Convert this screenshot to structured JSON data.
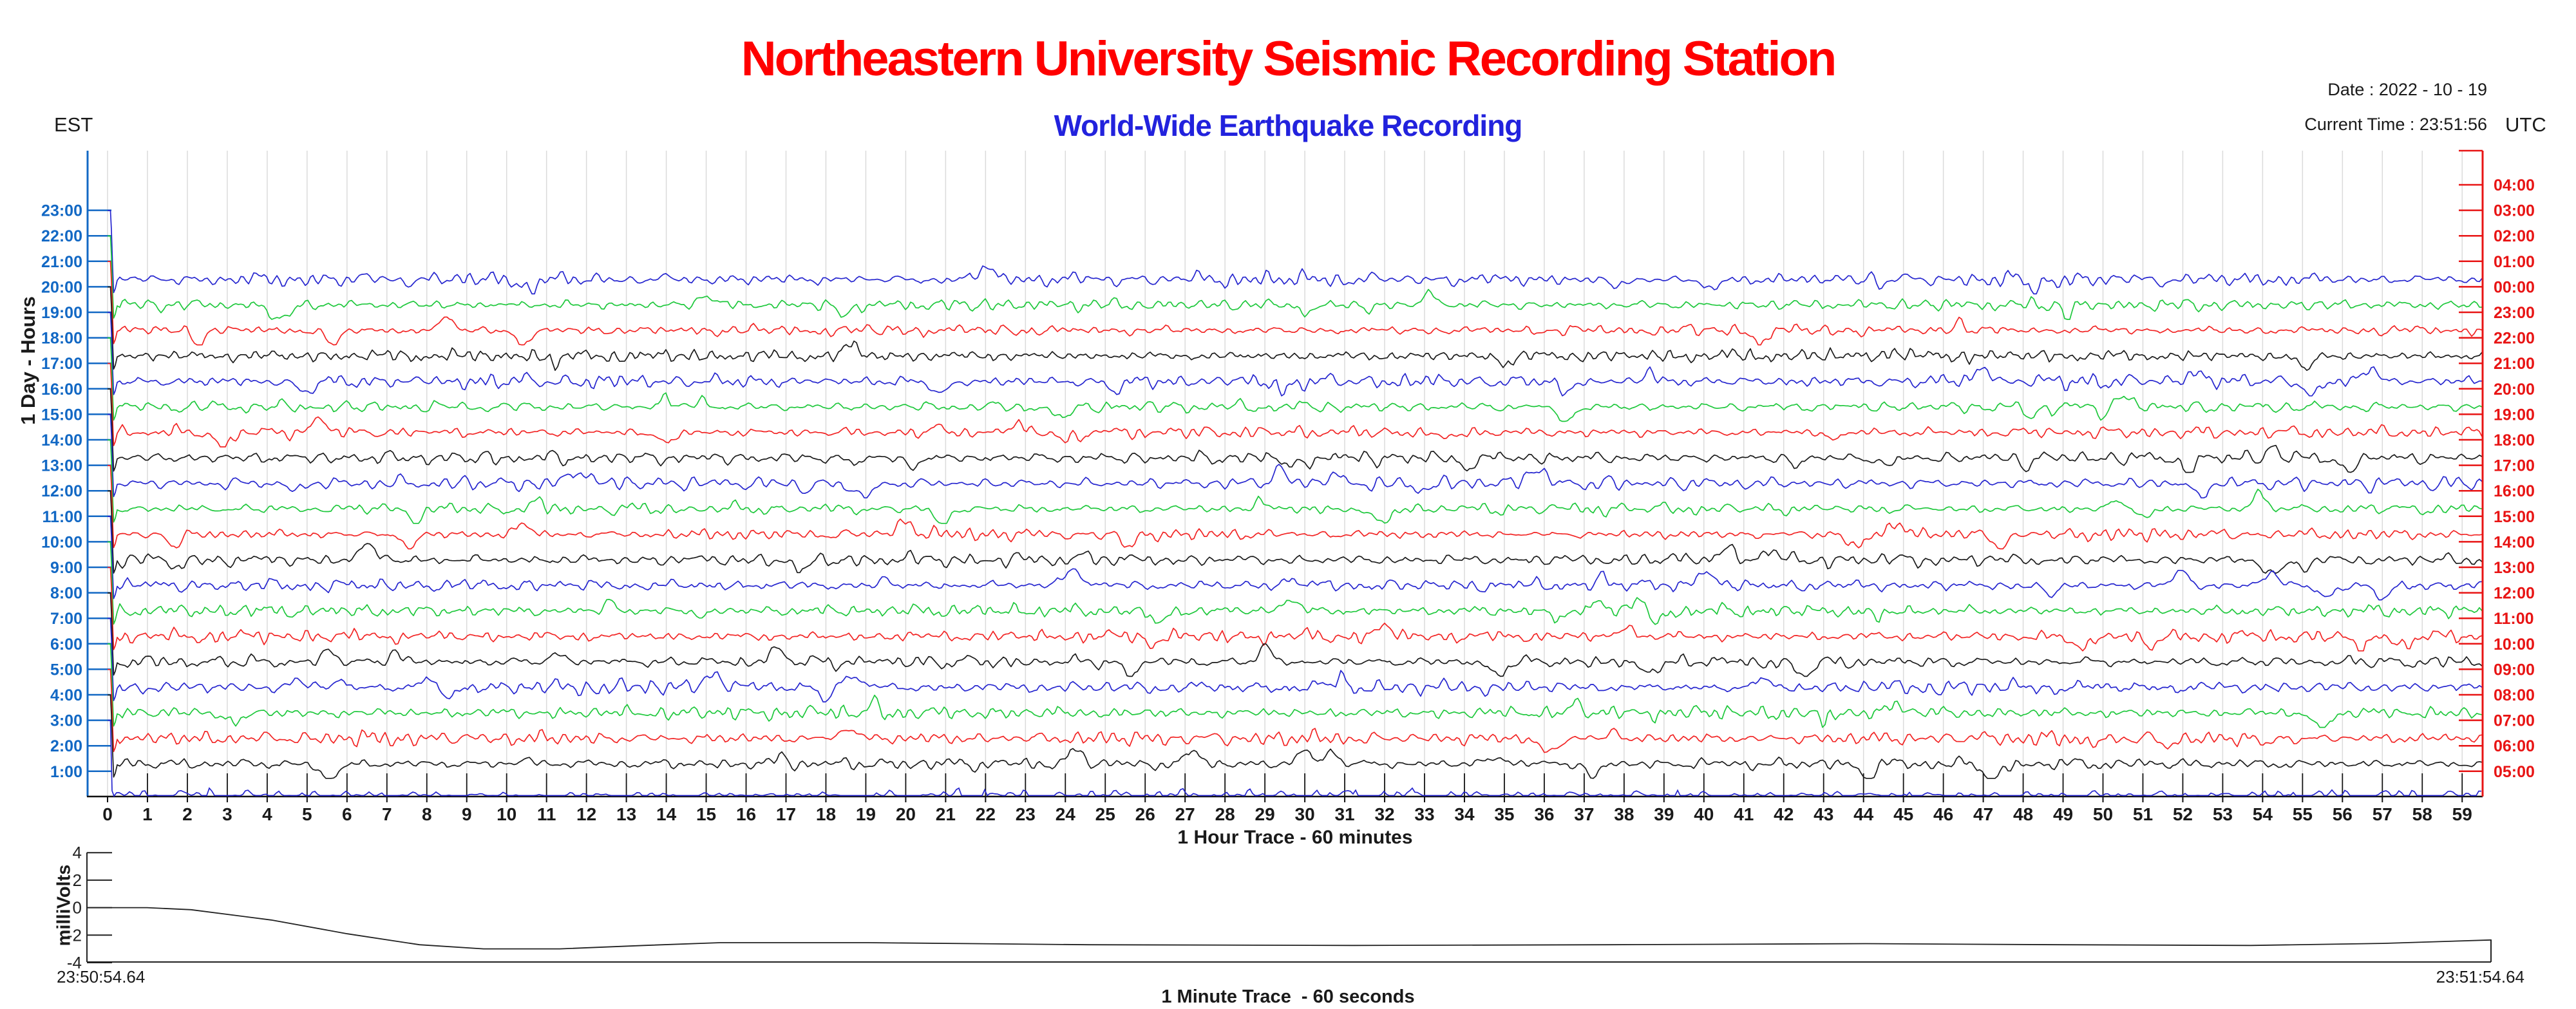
{
  "header": {
    "title": "Northeastern University Seismic Recording Station",
    "subtitle": "World-Wide Earthquake Recording",
    "date_line": "Date : 2022 - 10 - 19",
    "time_line": "Current Time : 23:51:56",
    "left_timezone": "EST",
    "right_timezone": "UTC",
    "title_color": "#ff0000",
    "subtitle_color": "#2222dd"
  },
  "helicorder": {
    "ylabel": "1 Day - Hours",
    "xlabel": "1 Hour Trace - 60 minutes",
    "left_axis_color": "#1268c4",
    "right_axis_color": "#e81414",
    "gridline_color": "#dbdbdb",
    "trace_color_cycle": [
      "#2626cf",
      "#1ec83c",
      "#f22424",
      "#1b1b1b"
    ],
    "est_labels": [
      "23:00",
      "22:00",
      "21:00",
      "20:00",
      "19:00",
      "18:00",
      "17:00",
      "16:00",
      "15:00",
      "14:00",
      "13:00",
      "12:00",
      "11:00",
      "10:00",
      "9:00",
      "8:00",
      "7:00",
      "6:00",
      "5:00",
      "4:00",
      "3:00",
      "2:00",
      "1:00"
    ],
    "utc_labels": [
      "04:00",
      "03:00",
      "02:00",
      "01:00",
      "00:00",
      "23:00",
      "22:00",
      "21:00",
      "20:00",
      "19:00",
      "18:00",
      "17:00",
      "16:00",
      "15:00",
      "14:00",
      "13:00",
      "12:00",
      "11:00",
      "10:00",
      "09:00",
      "08:00",
      "07:00",
      "06:00",
      "05:00"
    ],
    "x_ticks": [
      "0",
      "1",
      "2",
      "3",
      "4",
      "5",
      "6",
      "7",
      "8",
      "9",
      "10",
      "11",
      "12",
      "13",
      "14",
      "15",
      "16",
      "17",
      "18",
      "19",
      "20",
      "21",
      "22",
      "23",
      "24",
      "25",
      "26",
      "27",
      "28",
      "29",
      "30",
      "31",
      "32",
      "33",
      "34",
      "35",
      "36",
      "37",
      "38",
      "39",
      "40",
      "41",
      "42",
      "43",
      "44",
      "45",
      "46",
      "47",
      "48",
      "49",
      "50",
      "51",
      "52",
      "53",
      "54",
      "55",
      "56",
      "57",
      "58",
      "59"
    ]
  },
  "minute_trace": {
    "ylabel": "milliVolts",
    "caption": "1 Minute Trace  - 60 seconds",
    "start_time": "23:50:54.64",
    "end_time": "23:51:54.64",
    "y_ticks": [
      "4",
      "2",
      "0",
      "-2",
      "-4"
    ]
  },
  "chart_data": [
    {
      "id": "hour-helicorder",
      "type": "line",
      "title": "Northeastern University Seismic Recording Station - World-Wide Earthquake Recording",
      "xlabel": "1 Hour Trace - 60 minutes",
      "ylabel": "1 Day - Hours",
      "x_range_minutes": [
        0,
        59
      ],
      "grid": true,
      "legend_position": "none",
      "rows": [
        {
          "utc": "04:00",
          "est": null,
          "trace": "none"
        },
        {
          "utc": "03:00",
          "est": "23:00",
          "trace": "startup-drop",
          "color": "#2626cf"
        },
        {
          "utc": "02:00",
          "est": "22:00",
          "trace": "startup-drop",
          "color": "#1ec83c"
        },
        {
          "utc": "01:00",
          "est": "21:00",
          "trace": "startup-drop",
          "color": "#f22424"
        },
        {
          "utc": "00:00",
          "est": "20:00",
          "trace": "background-noise",
          "color": "#2626cf"
        },
        {
          "utc": "23:00",
          "est": "19:00",
          "trace": "background-noise",
          "color": "#1ec83c"
        },
        {
          "utc": "22:00",
          "est": "18:00",
          "trace": "background-noise",
          "color": "#f22424"
        },
        {
          "utc": "21:00",
          "est": "17:00",
          "trace": "background-noise",
          "color": "#1b1b1b"
        },
        {
          "utc": "20:00",
          "est": "16:00",
          "trace": "background-noise",
          "color": "#2626cf"
        },
        {
          "utc": "19:00",
          "est": "15:00",
          "trace": "background-noise",
          "color": "#1ec83c"
        },
        {
          "utc": "18:00",
          "est": "14:00",
          "trace": "background-noise",
          "color": "#f22424"
        },
        {
          "utc": "17:00",
          "est": "13:00",
          "trace": "background-noise",
          "color": "#1b1b1b"
        },
        {
          "utc": "16:00",
          "est": "12:00",
          "trace": "background-noise",
          "color": "#2626cf"
        },
        {
          "utc": "15:00",
          "est": "11:00",
          "trace": "background-noise",
          "color": "#1ec83c"
        },
        {
          "utc": "14:00",
          "est": "10:00",
          "trace": "background-noise",
          "color": "#f22424"
        },
        {
          "utc": "13:00",
          "est": "9:00",
          "trace": "background-noise",
          "color": "#1b1b1b"
        },
        {
          "utc": "12:00",
          "est": "8:00",
          "trace": "background-noise",
          "color": "#2626cf"
        },
        {
          "utc": "11:00",
          "est": "7:00",
          "trace": "background-noise",
          "color": "#1ec83c"
        },
        {
          "utc": "10:00",
          "est": "6:00",
          "trace": "background-noise",
          "color": "#f22424"
        },
        {
          "utc": "09:00",
          "est": "5:00",
          "trace": "background-noise",
          "color": "#1b1b1b"
        },
        {
          "utc": "08:00",
          "est": "4:00",
          "trace": "background-noise",
          "color": "#2626cf"
        },
        {
          "utc": "07:00",
          "est": "3:00",
          "trace": "background-noise",
          "color": "#1ec83c"
        },
        {
          "utc": "06:00",
          "est": "2:00",
          "trace": "background-noise",
          "color": "#f22424"
        },
        {
          "utc": "05:00",
          "est": "1:00",
          "trace": "background-noise",
          "color": "#1b1b1b"
        },
        {
          "utc": null,
          "est": null,
          "trace": "current-row-low-noise-with-minute-marks",
          "color": "#2626cf"
        }
      ]
    },
    {
      "id": "minute-trace",
      "type": "line",
      "xlabel": "1 Minute Trace  - 60 seconds",
      "ylabel": "milliVolts",
      "ylim": [
        -4,
        4
      ],
      "yticks": [
        4,
        2,
        0,
        -2,
        -4
      ],
      "x_start_label": "23:50:54.64",
      "x_end_label": "23:51:54.64",
      "series_seconds_vs_mV": [
        [
          0,
          0
        ],
        [
          1.5,
          0
        ],
        [
          2.6,
          -0.15
        ],
        [
          4.6,
          -0.9
        ],
        [
          6.5,
          -1.9
        ],
        [
          8.3,
          -2.7
        ],
        [
          9.9,
          -3.0
        ],
        [
          11.8,
          -3.0
        ],
        [
          13.9,
          -2.75
        ],
        [
          15.8,
          -2.55
        ],
        [
          19.5,
          -2.55
        ],
        [
          25.0,
          -2.7
        ],
        [
          31.6,
          -2.75
        ],
        [
          38.0,
          -2.7
        ],
        [
          44.4,
          -2.62
        ],
        [
          49.3,
          -2.7
        ],
        [
          54.0,
          -2.75
        ],
        [
          57.3,
          -2.6
        ],
        [
          60.0,
          -2.35
        ]
      ]
    }
  ]
}
